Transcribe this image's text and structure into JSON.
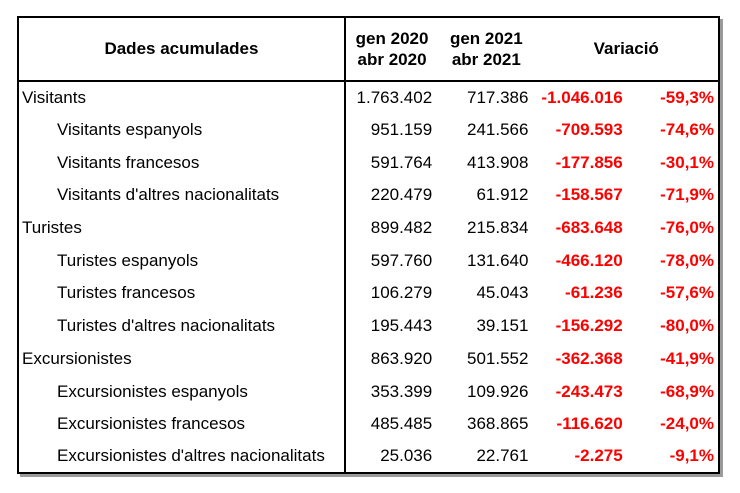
{
  "chart_data": {
    "type": "table",
    "title": "Dades acumulades",
    "header": {
      "label": "Dades acumulades",
      "period_2020": [
        "gen 2020",
        "abr 2020"
      ],
      "period_2021": [
        "gen 2021",
        "abr 2021"
      ],
      "variation": "Variació"
    },
    "rows": [
      {
        "label": "Visitants",
        "indent": 0,
        "period_2020": "1.763.402",
        "period_2021": "717.386",
        "variation_abs": "-1.046.016",
        "variation_pct": "-59,3%"
      },
      {
        "label": "Visitants espanyols",
        "indent": 1,
        "period_2020": "951.159",
        "period_2021": "241.566",
        "variation_abs": "-709.593",
        "variation_pct": "-74,6%"
      },
      {
        "label": "Visitants francesos",
        "indent": 1,
        "period_2020": "591.764",
        "period_2021": "413.908",
        "variation_abs": "-177.856",
        "variation_pct": "-30,1%"
      },
      {
        "label": "Visitants d'altres nacionalitats",
        "indent": 1,
        "period_2020": "220.479",
        "period_2021": "61.912",
        "variation_abs": "-158.567",
        "variation_pct": "-71,9%"
      },
      {
        "label": "Turistes",
        "indent": 0,
        "period_2020": "899.482",
        "period_2021": "215.834",
        "variation_abs": "-683.648",
        "variation_pct": "-76,0%"
      },
      {
        "label": "Turistes espanyols",
        "indent": 1,
        "period_2020": "597.760",
        "period_2021": "131.640",
        "variation_abs": "-466.120",
        "variation_pct": "-78,0%"
      },
      {
        "label": "Turistes francesos",
        "indent": 1,
        "period_2020": "106.279",
        "period_2021": "45.043",
        "variation_abs": "-61.236",
        "variation_pct": "-57,6%"
      },
      {
        "label": "Turistes d'altres nacionalitats",
        "indent": 1,
        "period_2020": "195.443",
        "period_2021": "39.151",
        "variation_abs": "-156.292",
        "variation_pct": "-80,0%"
      },
      {
        "label": "Excursionistes",
        "indent": 0,
        "period_2020": "863.920",
        "period_2021": "501.552",
        "variation_abs": "-362.368",
        "variation_pct": "-41,9%"
      },
      {
        "label": "Excursionistes espanyols",
        "indent": 1,
        "period_2020": "353.399",
        "period_2021": "109.926",
        "variation_abs": "-243.473",
        "variation_pct": "-68,9%"
      },
      {
        "label": "Excursionistes francesos",
        "indent": 1,
        "period_2020": "485.485",
        "period_2021": "368.865",
        "variation_abs": "-116.620",
        "variation_pct": "-24,0%"
      },
      {
        "label": "Excursionistes d'altres nacionalitats",
        "indent": 1,
        "period_2020": "25.036",
        "period_2021": "22.761",
        "variation_abs": "-2.275",
        "variation_pct": "-9,1%"
      }
    ]
  },
  "colors": {
    "text": "#000000",
    "negative_value": "#ff0000",
    "border": "#000000",
    "shadow": "#9b9b9b",
    "background": "#ffffff"
  }
}
